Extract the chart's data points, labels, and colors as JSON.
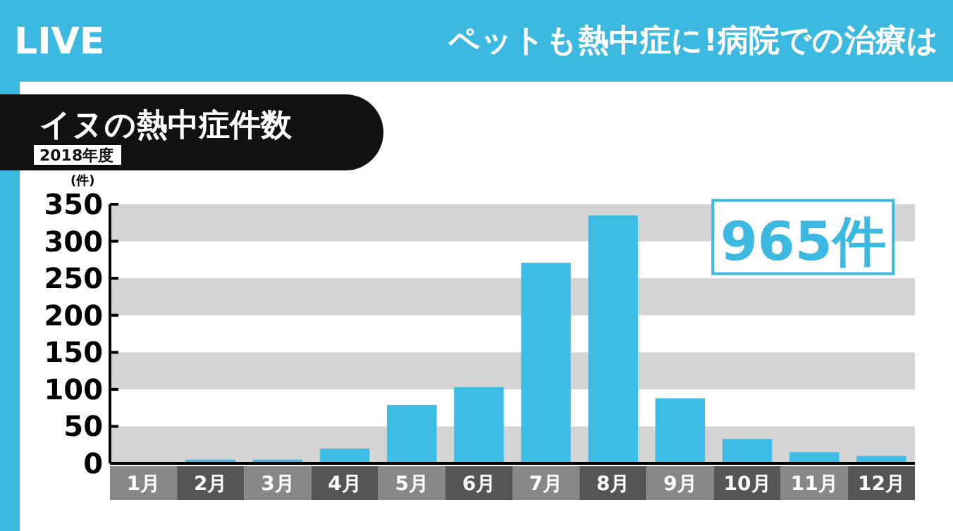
{
  "chart_data": {
    "type": "bar",
    "title": "イヌの熱中症件数",
    "subtitle": "2018年度",
    "ylabel": "(件)",
    "annotations": [
      "LIVE",
      "ペットも熱中症に!病院での治療は",
      {
        "text": "965件",
        "x": "11月",
        "y": 300
      }
    ],
    "categories": [
      "1月",
      "2月",
      "3月",
      "4月",
      "5月",
      "6月",
      "7月",
      "8月",
      "9月",
      "10月",
      "11月",
      "12月"
    ],
    "values": [
      1,
      5,
      5,
      20,
      79,
      103,
      271,
      335,
      88,
      33,
      15,
      10
    ],
    "color": "#3dbde6",
    "ylim": [
      0,
      350
    ],
    "yticks": [
      0,
      50,
      100,
      150,
      200,
      250,
      300,
      350
    ],
    "bands": [
      {
        "axis": "y",
        "from": 0,
        "to": 50,
        "color": "#d4d4d4"
      },
      {
        "axis": "y",
        "from": 100,
        "to": 150,
        "color": "#d4d4d4"
      },
      {
        "axis": "y",
        "from": 200,
        "to": 250,
        "color": "#d4d4d4"
      },
      {
        "axis": "y",
        "from": 300,
        "to": 350,
        "color": "#d4d4d4"
      }
    ]
  }
}
